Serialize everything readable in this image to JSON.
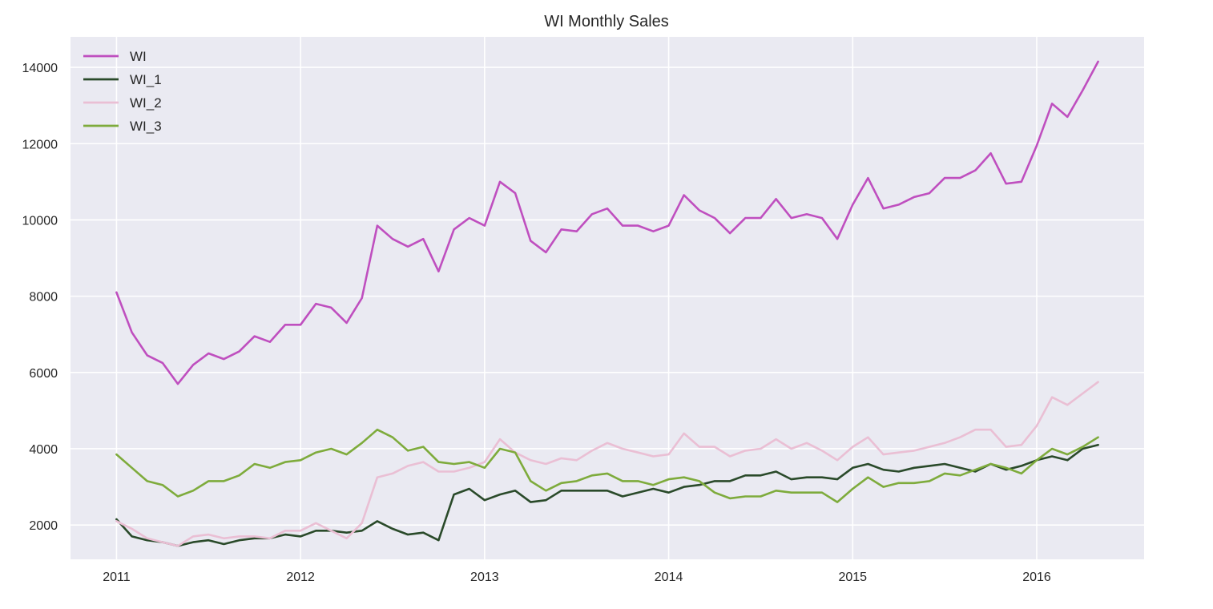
{
  "chart_data": {
    "type": "line",
    "title": "WI Monthly Sales",
    "xlabel": "",
    "ylabel": "",
    "x_ticks": [
      "2011",
      "2012",
      "2013",
      "2014",
      "2015",
      "2016"
    ],
    "y_ticks": [
      2000,
      4000,
      6000,
      8000,
      10000,
      12000,
      14000
    ],
    "xlim": [
      "2010-10",
      "2016-08"
    ],
    "ylim": [
      1100,
      14800
    ],
    "grid": true,
    "legend": "top-left",
    "x": [
      "2011-01",
      "2011-02",
      "2011-03",
      "2011-04",
      "2011-05",
      "2011-06",
      "2011-07",
      "2011-08",
      "2011-09",
      "2011-10",
      "2011-11",
      "2011-12",
      "2012-01",
      "2012-02",
      "2012-03",
      "2012-04",
      "2012-05",
      "2012-06",
      "2012-07",
      "2012-08",
      "2012-09",
      "2012-10",
      "2012-11",
      "2012-12",
      "2013-01",
      "2013-02",
      "2013-03",
      "2013-04",
      "2013-05",
      "2013-06",
      "2013-07",
      "2013-08",
      "2013-09",
      "2013-10",
      "2013-11",
      "2013-12",
      "2014-01",
      "2014-02",
      "2014-03",
      "2014-04",
      "2014-05",
      "2014-06",
      "2014-07",
      "2014-08",
      "2014-09",
      "2014-10",
      "2014-11",
      "2014-12",
      "2015-01",
      "2015-02",
      "2015-03",
      "2015-04",
      "2015-05",
      "2015-06",
      "2015-07",
      "2015-08",
      "2015-09",
      "2015-10",
      "2015-11",
      "2015-12",
      "2016-01",
      "2016-02",
      "2016-03",
      "2016-04",
      "2016-05"
    ],
    "series": [
      {
        "name": "WI",
        "color": "#bf4fbf",
        "values": [
          8100,
          7050,
          6450,
          6250,
          5700,
          6200,
          6500,
          6350,
          6550,
          6950,
          6800,
          7250,
          7250,
          7800,
          7700,
          7300,
          7950,
          9850,
          9500,
          9300,
          9500,
          8650,
          9750,
          10050,
          9850,
          11000,
          10700,
          9450,
          9150,
          9750,
          9700,
          10150,
          10300,
          9850,
          9850,
          9700,
          9850,
          10650,
          10250,
          10050,
          9650,
          10050,
          10050,
          10550,
          10050,
          10150,
          10050,
          9500,
          10400,
          11100,
          10300,
          10400,
          10600,
          10700,
          11100,
          11100,
          11300,
          11750,
          10950,
          11000,
          11950,
          13050,
          12700,
          13400,
          14150
        ]
      },
      {
        "name": "WI_1",
        "color": "#2a4a2a",
        "values": [
          2150,
          1700,
          1600,
          1550,
          1450,
          1550,
          1600,
          1500,
          1600,
          1650,
          1650,
          1750,
          1700,
          1850,
          1850,
          1800,
          1850,
          2100,
          1900,
          1750,
          1800,
          1600,
          2800,
          2950,
          2650,
          2800,
          2900,
          2600,
          2650,
          2900,
          2900,
          2900,
          2900,
          2750,
          2850,
          2950,
          2850,
          3000,
          3050,
          3150,
          3150,
          3300,
          3300,
          3400,
          3200,
          3250,
          3250,
          3200,
          3500,
          3600,
          3450,
          3400,
          3500,
          3550,
          3600,
          3500,
          3400,
          3600,
          3450,
          3550,
          3700,
          3800,
          3700,
          4000,
          4100
        ]
      },
      {
        "name": "WI_2",
        "color": "#eabfd4",
        "values": [
          2100,
          1900,
          1650,
          1550,
          1450,
          1700,
          1750,
          1650,
          1700,
          1700,
          1650,
          1850,
          1850,
          2050,
          1850,
          1650,
          2050,
          3250,
          3350,
          3550,
          3650,
          3400,
          3400,
          3500,
          3650,
          4250,
          3900,
          3700,
          3600,
          3750,
          3700,
          3950,
          4150,
          4000,
          3900,
          3800,
          3850,
          4400,
          4050,
          4050,
          3800,
          3950,
          4000,
          4250,
          4000,
          4150,
          3950,
          3700,
          4050,
          4300,
          3850,
          3900,
          3950,
          4050,
          4150,
          4300,
          4500,
          4500,
          4050,
          4100,
          4600,
          5350,
          5150,
          5450,
          5750
        ]
      },
      {
        "name": "WI_3",
        "color": "#7eab3c",
        "values": [
          3850,
          3500,
          3150,
          3050,
          2750,
          2900,
          3150,
          3150,
          3300,
          3600,
          3500,
          3650,
          3700,
          3900,
          4000,
          3850,
          4150,
          4500,
          4300,
          3950,
          4050,
          3650,
          3600,
          3650,
          3500,
          4000,
          3900,
          3150,
          2900,
          3100,
          3150,
          3300,
          3350,
          3150,
          3150,
          3050,
          3200,
          3250,
          3150,
          2850,
          2700,
          2750,
          2750,
          2900,
          2850,
          2850,
          2850,
          2600,
          2950,
          3250,
          3000,
          3100,
          3100,
          3150,
          3350,
          3300,
          3450,
          3600,
          3500,
          3350,
          3700,
          4000,
          3850,
          4050,
          4300
        ]
      }
    ]
  }
}
